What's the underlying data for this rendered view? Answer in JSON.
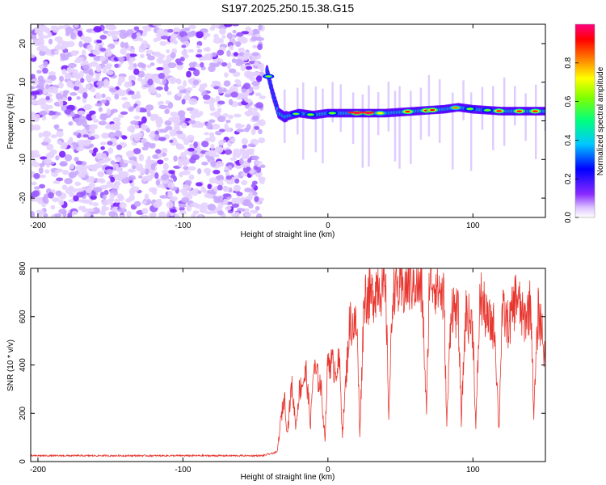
{
  "title": "S197.2025.250.15.38.G15",
  "chart_data": [
    {
      "type": "heatmap",
      "name": "spectrogram",
      "xlabel": "Height of straight line (km)",
      "ylabel": "Frequency (Hz)",
      "xlim": [
        -205,
        150
      ],
      "ylim": [
        -25,
        25
      ],
      "xticks": [
        -200,
        -100,
        0,
        100
      ],
      "yticks": [
        -20,
        -10,
        0,
        10,
        20
      ],
      "noise_region_x": [
        -205,
        -45
      ],
      "signal_track": {
        "x": [
          -42,
          -38,
          -34,
          -30,
          -25,
          -20,
          -10,
          0,
          10,
          20,
          40,
          60,
          80,
          90,
          100,
          120,
          140,
          150
        ],
        "frequency": [
          13,
          7,
          2,
          1,
          1.5,
          2,
          1.5,
          2,
          2,
          2,
          2,
          2.5,
          3,
          3.5,
          3,
          2.5,
          2.5,
          2.5
        ]
      },
      "colorbar": {
        "label": "Normalized spectral amplitude",
        "range": [
          0,
          1
        ],
        "ticks": [
          "0.0",
          "0.2",
          "0.4",
          "0.6",
          "0.8"
        ],
        "colors": [
          "#ffffff",
          "#d9b3ff",
          "#7f00ff",
          "#0000ff",
          "#00b3ff",
          "#00ff80",
          "#80ff00",
          "#ffff00",
          "#ff8000",
          "#ff0000",
          "#ff00aa"
        ]
      }
    },
    {
      "type": "line",
      "name": "snr",
      "xlabel": "Height of straight line (km)",
      "ylabel": "SNR (10 * v/v)",
      "xlim": [
        -205,
        150
      ],
      "ylim": [
        0,
        800
      ],
      "xticks": [
        -200,
        -100,
        0,
        100
      ],
      "yticks": [
        0,
        200,
        400,
        600,
        800
      ],
      "color": "#e8362f",
      "series": [
        {
          "name": "SNR envelope",
          "x": [
            -205,
            -45,
            -35,
            -32,
            -30,
            -28,
            -25,
            -22,
            -20,
            -15,
            -12,
            -10,
            -5,
            -2,
            0,
            5,
            8,
            10,
            15,
            20,
            22,
            25,
            30,
            35,
            40,
            42,
            45,
            50,
            55,
            60,
            65,
            68,
            70,
            75,
            80,
            82,
            85,
            90,
            92,
            95,
            100,
            102,
            105,
            110,
            115,
            118,
            120,
            125,
            130,
            135,
            140,
            142,
            145,
            148,
            150
          ],
          "values": [
            25,
            25,
            40,
            200,
            280,
            120,
            330,
            150,
            300,
            380,
            160,
            400,
            330,
            100,
            440,
            400,
            420,
            120,
            600,
            580,
            120,
            720,
            700,
            780,
            700,
            200,
            780,
            720,
            760,
            780,
            720,
            200,
            800,
            760,
            700,
            150,
            680,
            620,
            180,
            640,
            580,
            140,
            720,
            600,
            580,
            130,
            640,
            580,
            720,
            600,
            680,
            200,
            640,
            560,
            400
          ]
        }
      ]
    }
  ]
}
